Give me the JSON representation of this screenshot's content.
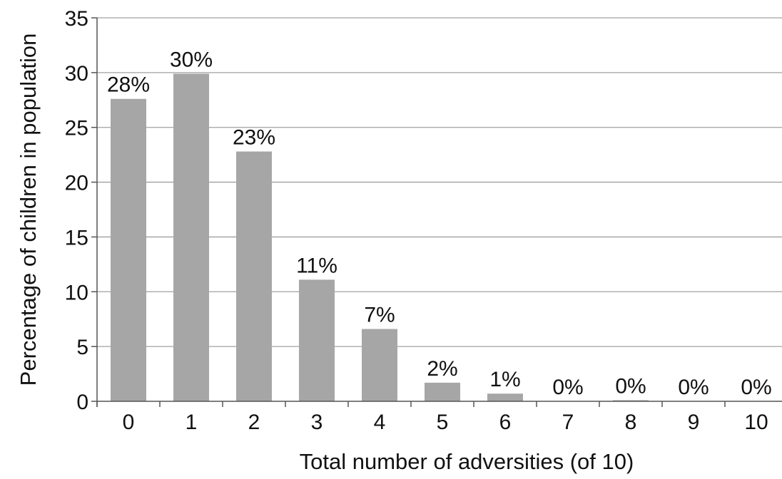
{
  "chart_data": {
    "type": "bar",
    "categories": [
      "0",
      "1",
      "2",
      "3",
      "4",
      "5",
      "6",
      "7",
      "8",
      "9",
      "10"
    ],
    "values": [
      27.6,
      29.9,
      22.8,
      11.1,
      6.6,
      1.7,
      0.7,
      0.0,
      0.1,
      0.0,
      0.0
    ],
    "data_labels": [
      "28%",
      "30%",
      "23%",
      "11%",
      "7%",
      "2%",
      "1%",
      "0%",
      "0%",
      "0%",
      "0%"
    ],
    "xlabel": "Total number of adversities (of 10)",
    "ylabel": "Percentage of children in population",
    "ylim": [
      0,
      35
    ],
    "yticks": [
      0,
      5,
      10,
      15,
      20,
      25,
      30,
      35
    ],
    "grid": true,
    "legend": "none",
    "colors": {
      "bar": "#a6a6a6",
      "grid": "#a0a0a0",
      "axis": "#555555",
      "text": "#111111"
    }
  }
}
